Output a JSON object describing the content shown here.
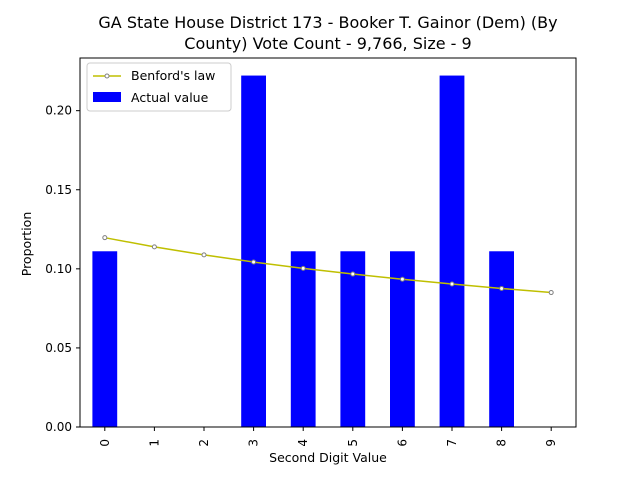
{
  "chart_data": {
    "type": "bar",
    "title_line1": "GA State House District 173 - Booker T. Gainor (Dem) (By",
    "title_line2": "County) Vote Count - 9,766, Size - 9",
    "xlabel": "Second Digit Value",
    "ylabel": "Proportion",
    "categories": [
      "0",
      "1",
      "2",
      "3",
      "4",
      "5",
      "6",
      "7",
      "8",
      "9"
    ],
    "series": [
      {
        "name": "Actual value",
        "kind": "bar",
        "color": "#0000ff",
        "values": [
          0.1111,
          0.0,
          0.0,
          0.2222,
          0.1111,
          0.1111,
          0.1111,
          0.2222,
          0.1111,
          0.0
        ]
      },
      {
        "name": "Benford's law",
        "kind": "line",
        "color": "#bfbf00",
        "marker_color": "#808080",
        "values": [
          0.1197,
          0.1139,
          0.1088,
          0.1043,
          0.1003,
          0.0967,
          0.0934,
          0.0904,
          0.0876,
          0.085
        ]
      }
    ],
    "ylim": [
      0,
      0.2333
    ],
    "yticks": [
      "0.00",
      "0.05",
      "0.10",
      "0.15",
      "0.20"
    ],
    "ytick_values": [
      0,
      0.05,
      0.1,
      0.15,
      0.2
    ],
    "legend_position": "upper-left",
    "grid": false
  }
}
